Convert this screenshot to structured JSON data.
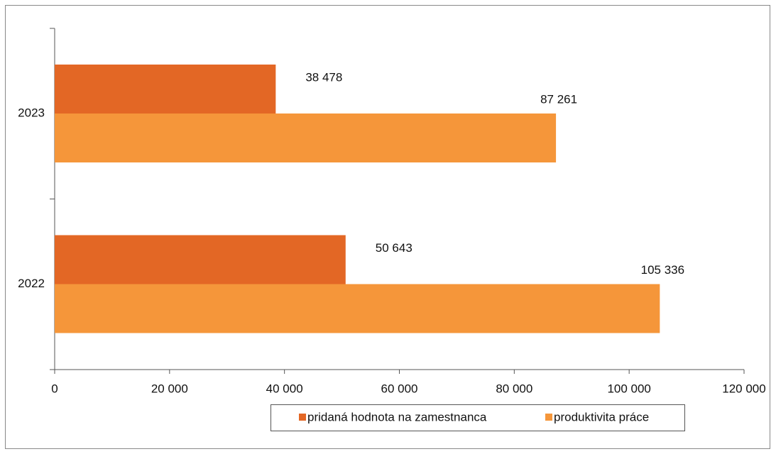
{
  "chart_data": {
    "type": "hbar",
    "categories": [
      "2023",
      "2022"
    ],
    "series": [
      {
        "name": "pridaná hodnota na zamestnanca",
        "color": "#e36725",
        "values": [
          38478,
          50643
        ],
        "value_labels": [
          "38 478",
          "50 643"
        ]
      },
      {
        "name": "produktivita práce",
        "color": "#f5963a",
        "values": [
          87261,
          105336
        ],
        "value_labels": [
          "87 261",
          "105 336"
        ]
      }
    ],
    "xlim": [
      0,
      120000
    ],
    "xticks": [
      0,
      {
        "value": 20000,
        "label": "20 000"
      },
      {
        "value": 40000,
        "label": "40 000"
      },
      {
        "value": 60000,
        "label": "60 000"
      },
      {
        "value": 80000,
        "label": "80 000"
      },
      {
        "value": 100000,
        "label": "100 000"
      },
      {
        "value": 120000,
        "label": "120 000"
      }
    ],
    "legend": "bottom"
  }
}
